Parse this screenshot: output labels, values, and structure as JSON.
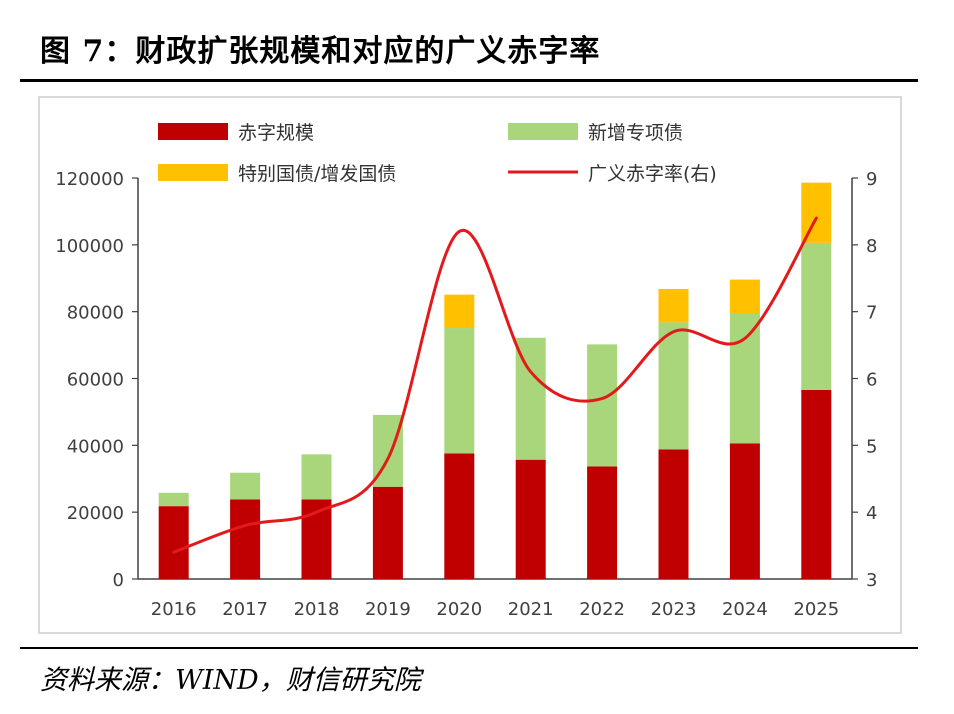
{
  "figure": {
    "title": "图 7：财政扩张规模和对应的广义赤字率",
    "source": "资料来源：WIND，财信研究院"
  },
  "colors": {
    "deficit": "#c00000",
    "special_bonds": "#a9d67a",
    "treasury_bonds": "#ffc000",
    "line": "#e31a1c"
  },
  "chart_data": {
    "type": "bar",
    "stacked": true,
    "categories": [
      "2016",
      "2017",
      "2018",
      "2019",
      "2020",
      "2021",
      "2022",
      "2023",
      "2024",
      "2025"
    ],
    "series": [
      {
        "name": "赤字规模",
        "type": "bar",
        "axis": "left",
        "values": [
          21800,
          23800,
          23800,
          27600,
          37600,
          35700,
          33700,
          38800,
          40600,
          56600
        ]
      },
      {
        "name": "新增专项债",
        "type": "bar",
        "axis": "left",
        "values": [
          4000,
          8000,
          13500,
          21500,
          37500,
          36500,
          36500,
          38000,
          39000,
          44000
        ]
      },
      {
        "name": "特别国债/增发国债",
        "type": "bar",
        "axis": "left",
        "values": [
          0,
          0,
          0,
          0,
          10000,
          0,
          0,
          10000,
          10000,
          18000
        ]
      },
      {
        "name": "广义赤字率(右)",
        "type": "line",
        "axis": "right",
        "values": [
          3.4,
          3.8,
          4.0,
          4.8,
          8.2,
          6.1,
          5.7,
          6.7,
          6.6,
          8.4
        ]
      }
    ],
    "y_left": {
      "min": 0,
      "max": 120000,
      "ticks": [
        "0",
        "20000",
        "40000",
        "60000",
        "80000",
        "100000",
        "120000"
      ]
    },
    "y_right": {
      "min": 3,
      "max": 9,
      "ticks": [
        "3",
        "4",
        "5",
        "6",
        "7",
        "8",
        "9"
      ]
    },
    "legend": {
      "placement": "top",
      "items": [
        "赤字规模",
        "新增专项债",
        "特别国债/增发国债",
        "广义赤字率(右)"
      ]
    },
    "grid": false
  }
}
